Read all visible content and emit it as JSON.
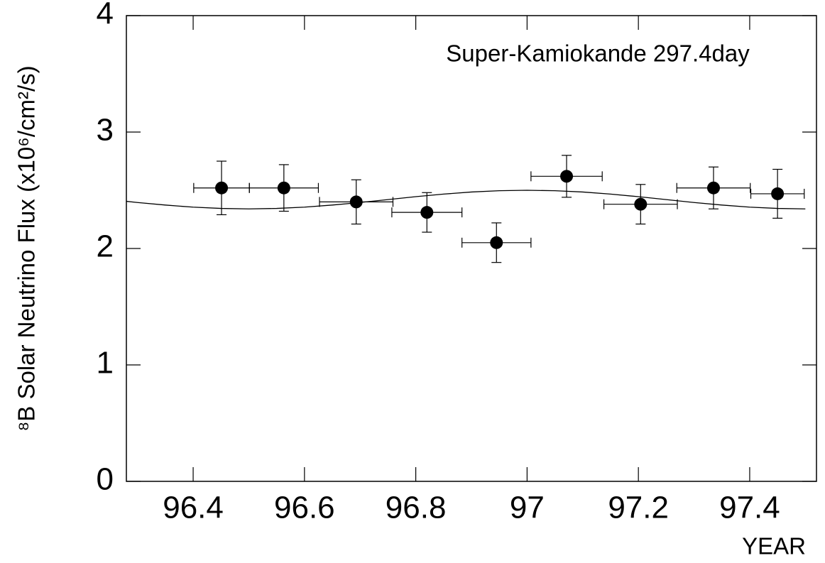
{
  "chart_data": {
    "type": "scatter",
    "annotation": "Super-Kamiokande 297.4day",
    "x_label": "YEAR",
    "y_label": "⁸B Solar Neutrino Flux (x10⁶/cm²/s)",
    "xlim": [
      96.28,
      97.52
    ],
    "ylim": [
      0,
      4
    ],
    "xticks": [
      96.4,
      96.6,
      96.8,
      97,
      97.2,
      97.4
    ],
    "yticks": [
      0,
      1,
      2,
      3,
      4
    ],
    "grid": false,
    "series": [
      {
        "type": "errorbar",
        "color": "#000000",
        "x": [
          96.451,
          96.563,
          96.693,
          96.82,
          96.945,
          97.071,
          97.204,
          97.335,
          97.45
        ],
        "values": [
          2.52,
          2.52,
          2.4,
          2.31,
          2.05,
          2.62,
          2.38,
          2.52,
          2.47
        ],
        "xerr": [
          0.05,
          0.062,
          0.066,
          0.063,
          0.062,
          0.064,
          0.066,
          0.066,
          0.048
        ],
        "yerr": [
          0.23,
          0.2,
          0.19,
          0.17,
          0.17,
          0.18,
          0.17,
          0.18,
          0.21
        ]
      },
      {
        "type": "line",
        "color": "#000000",
        "x": [
          96.28,
          96.3,
          96.35,
          96.4,
          96.45,
          96.5,
          96.55,
          96.6,
          96.65,
          96.7,
          96.75,
          96.8,
          96.85,
          96.9,
          96.95,
          97,
          97.05,
          97.1,
          97.15,
          97.2,
          97.25,
          97.3,
          97.35,
          97.4,
          97.45,
          97.5
        ],
        "values": [
          2.405,
          2.395,
          2.373,
          2.355,
          2.344,
          2.34,
          2.344,
          2.355,
          2.373,
          2.395,
          2.42,
          2.445,
          2.467,
          2.485,
          2.496,
          2.5,
          2.496,
          2.485,
          2.467,
          2.445,
          2.42,
          2.395,
          2.373,
          2.355,
          2.344,
          2.34
        ]
      }
    ]
  }
}
